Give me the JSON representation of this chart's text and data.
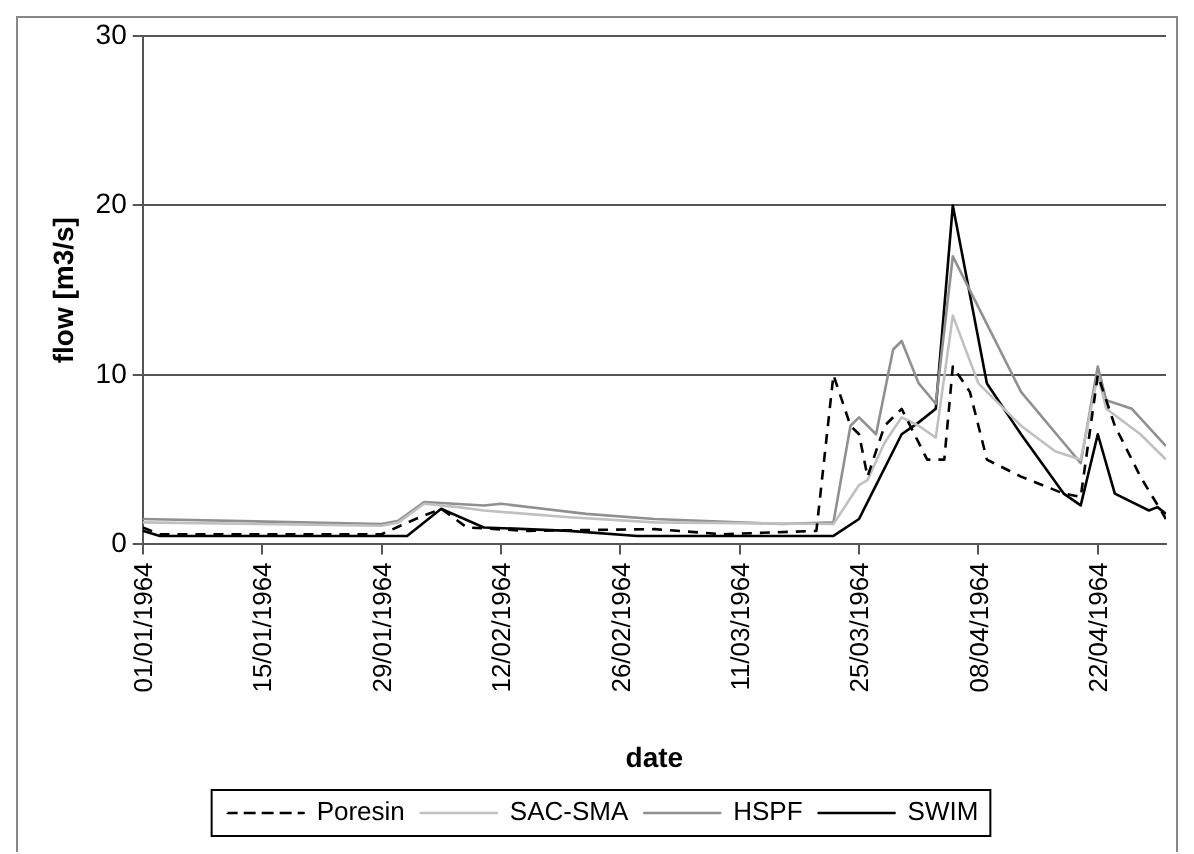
{
  "chart_data": {
    "type": "line",
    "xlabel": "date",
    "ylabel": "flow [m3/s]",
    "xlim": [
      "1964-01-01",
      "1964-04-30"
    ],
    "xticks": [
      {
        "value": "1964-01-01",
        "label": "01/01/1964"
      },
      {
        "value": "1964-01-15",
        "label": "15/01/1964"
      },
      {
        "value": "1964-01-29",
        "label": "29/01/1964"
      },
      {
        "value": "1964-02-12",
        "label": "12/02/1964"
      },
      {
        "value": "1964-02-26",
        "label": "26/02/1964"
      },
      {
        "value": "1964-03-11",
        "label": "11/03/1964"
      },
      {
        "value": "1964-03-25",
        "label": "25/03/1964"
      },
      {
        "value": "1964-04-08",
        "label": "08/04/1964"
      },
      {
        "value": "1964-04-22",
        "label": "22/04/1964"
      }
    ],
    "ylim": [
      0,
      30
    ],
    "yticks": [
      0,
      10,
      20,
      30
    ],
    "grid": "y",
    "legend": "bottom",
    "marker": "none",
    "series": [
      {
        "name": "Poresin",
        "color": "#000000",
        "line_style": "dashed",
        "x": [
          "1964-01-01",
          "1964-01-03",
          "1964-01-29",
          "1964-02-02",
          "1964-02-05",
          "1964-02-08",
          "1964-02-15",
          "1964-03-01",
          "1964-03-09",
          "1964-03-20",
          "1964-03-22",
          "1964-03-24",
          "1964-03-25",
          "1964-03-26",
          "1964-03-28",
          "1964-03-30",
          "1964-04-02",
          "1964-04-04",
          "1964-04-05",
          "1964-04-07",
          "1964-04-09",
          "1964-04-13",
          "1964-04-18",
          "1964-04-20",
          "1964-04-22",
          "1964-04-24",
          "1964-04-27",
          "1964-04-30"
        ],
        "values": [
          1,
          0.6,
          0.6,
          1.5,
          2.1,
          1.0,
          0.8,
          0.9,
          0.6,
          0.8,
          10,
          7,
          6.5,
          4,
          7,
          8,
          5,
          5,
          10.5,
          9,
          5,
          4,
          3,
          2.8,
          10,
          7,
          4,
          1.5
        ]
      },
      {
        "name": "SAC-SMA",
        "color": "#c0c0c0",
        "line_style": "solid",
        "x": [
          "1964-01-01",
          "1964-01-29",
          "1964-01-31",
          "1964-02-03",
          "1964-02-07",
          "1964-02-10",
          "1964-02-20",
          "1964-03-01",
          "1964-03-22",
          "1964-03-25",
          "1964-03-26",
          "1964-03-28",
          "1964-03-30",
          "1964-04-01",
          "1964-04-03",
          "1964-04-05",
          "1964-04-08",
          "1964-04-13",
          "1964-04-17",
          "1964-04-20",
          "1964-04-22",
          "1964-04-23",
          "1964-04-27",
          "1964-04-30"
        ],
        "values": [
          1.3,
          1.1,
          1.3,
          2.4,
          2.2,
          2.0,
          1.6,
          1.3,
          1.2,
          3.5,
          3.8,
          6,
          7.5,
          7,
          6.3,
          13.5,
          9.5,
          7,
          5.5,
          5,
          10,
          8,
          6.5,
          5
        ]
      },
      {
        "name": "HSPF",
        "color": "#909090",
        "line_style": "solid",
        "x": [
          "1964-01-01",
          "1964-01-29",
          "1964-01-31",
          "1964-02-03",
          "1964-02-10",
          "1964-02-12",
          "1964-02-22",
          "1964-03-01",
          "1964-03-16",
          "1964-03-22",
          "1964-03-24",
          "1964-03-25",
          "1964-03-27",
          "1964-03-29",
          "1964-03-30",
          "1964-04-01",
          "1964-04-03",
          "1964-04-05",
          "1964-04-09",
          "1964-04-13",
          "1964-04-18",
          "1964-04-20",
          "1964-04-22",
          "1964-04-23",
          "1964-04-26",
          "1964-04-30"
        ],
        "values": [
          1.5,
          1.2,
          1.4,
          2.5,
          2.3,
          2.4,
          1.8,
          1.5,
          1.2,
          1.3,
          7,
          7.5,
          6.5,
          11.5,
          12,
          9.5,
          8.3,
          17,
          13,
          9,
          6,
          4.8,
          10.5,
          8.5,
          8,
          5.8
        ]
      },
      {
        "name": "SWIM",
        "color": "#000000",
        "line_style": "solid",
        "x": [
          "1964-01-01",
          "1964-01-03",
          "1964-02-01",
          "1964-02-05",
          "1964-02-10",
          "1964-02-20",
          "1964-02-28",
          "1964-03-22",
          "1964-03-25",
          "1964-03-30",
          "1964-04-01",
          "1964-04-03",
          "1964-04-05",
          "1964-04-09",
          "1964-04-13",
          "1964-04-18",
          "1964-04-20",
          "1964-04-22",
          "1964-04-24",
          "1964-04-28",
          "1964-04-29",
          "1964-04-30"
        ],
        "values": [
          0.8,
          0.5,
          0.5,
          2.1,
          1.0,
          0.8,
          0.5,
          0.5,
          1.5,
          6.5,
          7.2,
          8,
          20,
          9.5,
          6.5,
          3,
          2.3,
          6.5,
          3,
          2,
          2.2,
          1.8
        ]
      }
    ]
  }
}
